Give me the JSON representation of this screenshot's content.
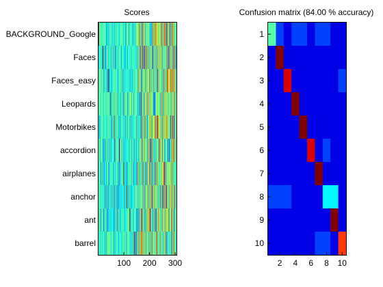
{
  "chart_data": [
    {
      "type": "heatmap",
      "title": "Scores",
      "xlabel": "",
      "ylabel": "",
      "xlim": [
        1,
        305
      ],
      "xticks": [
        100,
        200,
        300
      ],
      "categories": [
        "BACKGROUND_Google",
        "Faces",
        "Faces_easy",
        "Leopards",
        "Motorbikes",
        "accordion",
        "airplanes",
        "anchor",
        "ant",
        "barrel"
      ],
      "columns": 305,
      "colormap": "jet",
      "peak_column_per_row": [
        1,
        18,
        40,
        48,
        62,
        81,
        99,
        111,
        123,
        140
      ],
      "values_range": [
        0,
        1
      ]
    },
    {
      "type": "heatmap",
      "title": "Confusion matrix (84.00 % accuracy)",
      "xlabel": "",
      "ylabel": "",
      "accuracy_percent": 84.0,
      "xticks": [
        2,
        4,
        6,
        8,
        10
      ],
      "yticks": [
        1,
        2,
        3,
        4,
        5,
        6,
        7,
        8,
        9,
        10
      ],
      "colormap": "jet",
      "matrix": [
        [
          0.4,
          0.1,
          0.0,
          0.1,
          0.1,
          0.0,
          0.1,
          0.1,
          0.0,
          0.0
        ],
        [
          0.0,
          1.0,
          0.0,
          0.0,
          0.0,
          0.0,
          0.0,
          0.0,
          0.0,
          0.0
        ],
        [
          0.0,
          0.0,
          0.9,
          0.0,
          0.0,
          0.0,
          0.0,
          0.0,
          0.0,
          0.1
        ],
        [
          0.0,
          0.0,
          0.0,
          1.0,
          0.0,
          0.0,
          0.0,
          0.0,
          0.0,
          0.0
        ],
        [
          0.0,
          0.0,
          0.0,
          0.0,
          1.0,
          0.0,
          0.0,
          0.0,
          0.0,
          0.0
        ],
        [
          0.0,
          0.0,
          0.0,
          0.0,
          0.0,
          0.9,
          0.0,
          0.1,
          0.0,
          0.0
        ],
        [
          0.0,
          0.0,
          0.0,
          0.0,
          0.0,
          0.0,
          1.0,
          0.0,
          0.0,
          0.0
        ],
        [
          0.1,
          0.1,
          0.1,
          0.0,
          0.0,
          0.0,
          0.0,
          0.3,
          0.3,
          0.0
        ],
        [
          0.0,
          0.0,
          0.0,
          0.0,
          0.0,
          0.0,
          0.0,
          0.0,
          1.0,
          0.0
        ],
        [
          0.0,
          0.0,
          0.0,
          0.0,
          0.0,
          0.0,
          0.1,
          0.1,
          0.0,
          0.8
        ]
      ]
    }
  ]
}
